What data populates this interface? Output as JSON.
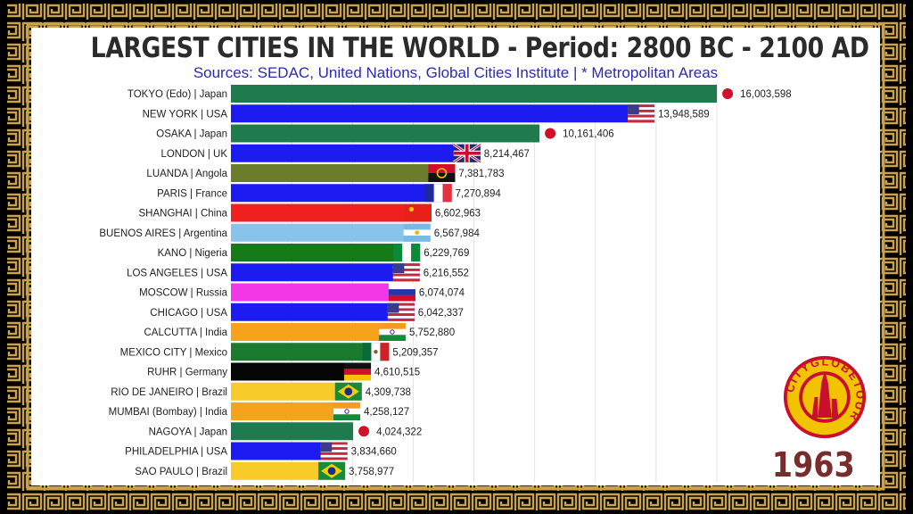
{
  "header": {
    "title": "LARGEST CITIES IN THE WORLD - Period: 2800 BC - 2100 AD",
    "subtitle": "Sources: SEDAC, United Nations, Global Cities Institute | * Metropolitan Areas"
  },
  "year": "1963",
  "logo": {
    "text": "CITYGLOBETOUR",
    "ring_color": "#c8102e",
    "fill_color": "#f2c400"
  },
  "colors": {
    "border_gold": "#c9a24a",
    "frame_black": "#000000"
  },
  "chart_data": {
    "type": "bar",
    "orientation": "horizontal",
    "xlim": [
      0,
      16500000
    ],
    "grid": true,
    "categories": [
      "TOKYO (Edo) | Japan",
      "NEW YORK | USA",
      "OSAKA | Japan",
      "LONDON | UK",
      "LUANDA | Angola",
      "PARIS | France",
      "SHANGHAI | China",
      "BUENOS AIRES | Argentina",
      "KANO | Nigeria",
      "LOS ANGELES | USA",
      "MOSCOW | Russia",
      "CHICAGO | USA",
      "CALCUTTA | India",
      "MEXICO CITY | Mexico",
      "RUHR | Germany",
      "RIO DE JANEIRO | Brazil",
      "MUMBAI (Bombay) | India",
      "NAGOYA | Japan",
      "PHILADELPHIA | USA",
      "SAO PAULO | Brazil"
    ],
    "values": [
      16003598,
      13948589,
      10161406,
      8214467,
      7381783,
      7270894,
      6602963,
      6567984,
      6229769,
      6216552,
      6074074,
      6042337,
      5752880,
      5209357,
      4610515,
      4309738,
      4258127,
      4024322,
      3834660,
      3758977
    ],
    "value_labels": [
      "16,003,598",
      "13,948,589",
      "10,161,406",
      "8,214,467",
      "7,381,783",
      "7,270,894",
      "6,602,963",
      "6,567,984",
      "6,229,769",
      "6,216,552",
      "6,074,074",
      "6,042,337",
      "5,752,880",
      "5,209,357",
      "4,610,515",
      "4,309,738",
      "4,258,127",
      "4,024,322",
      "3,834,660",
      "3,758,977"
    ],
    "bar_colors": [
      "#1f7a4d",
      "#1c1cf0",
      "#1f7a4d",
      "#1c1cf0",
      "#6b7d2a",
      "#1c1cf0",
      "#f02020",
      "#87c3ea",
      "#157a17",
      "#1c1cf0",
      "#f238e6",
      "#1c1cf0",
      "#f7a21c",
      "#1c7a2e",
      "#050505",
      "#f7cc2a",
      "#f7a21c",
      "#1f7a4d",
      "#1c1cf0",
      "#f7cc2a"
    ],
    "flags": [
      "japan",
      "usa",
      "japan",
      "uk",
      "angola",
      "france",
      "china",
      "argentina",
      "nigeria",
      "usa",
      "russia",
      "usa",
      "india",
      "mexico",
      "germany",
      "brazil",
      "india",
      "japan",
      "usa",
      "brazil"
    ]
  }
}
